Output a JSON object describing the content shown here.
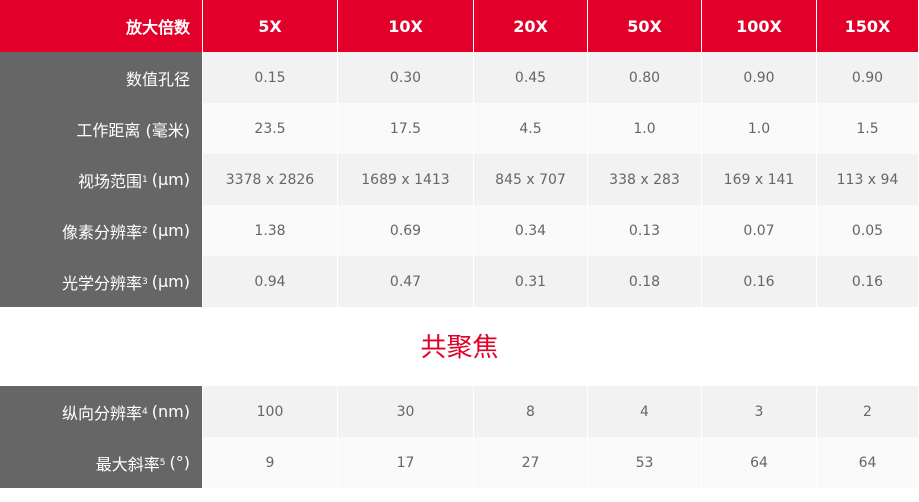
{
  "header": {
    "label": "放大倍数",
    "columns": [
      "5X",
      "10X",
      "20X",
      "50X",
      "100X",
      "150X"
    ]
  },
  "table": {
    "rows": [
      {
        "label": "数值孔径",
        "cells": [
          "0.15",
          "0.30",
          "0.45",
          "0.80",
          "0.90",
          "0.90"
        ]
      },
      {
        "label": "工作距离 (毫米)",
        "cells": [
          "23.5",
          "17.5",
          "4.5",
          "1.0",
          "1.0",
          "1.5"
        ]
      },
      {
        "label": "视场范围",
        "sup": "1",
        "unit": "(μm)",
        "cells": [
          "3378 x 2826",
          "1689 x 1413",
          "845 x 707",
          "338 x 283",
          "169 x 141",
          "113 x 94"
        ]
      },
      {
        "label": "像素分辨率",
        "sup": "2",
        "unit": "(μm)",
        "cells": [
          "1.38",
          "0.69",
          "0.34",
          "0.13",
          "0.07",
          "0.05"
        ]
      },
      {
        "label": "光学分辨率",
        "sup": "3",
        "unit": "(μm)",
        "cells": [
          "0.94",
          "0.47",
          "0.31",
          "0.18",
          "0.16",
          "0.16"
        ]
      }
    ]
  },
  "section": {
    "title": "共聚焦"
  },
  "confocal_table": {
    "rows": [
      {
        "label": "纵向分辨率",
        "sup": "4",
        "unit": "(nm)",
        "cells": [
          "100",
          "30",
          "8",
          "4",
          "3",
          "2"
        ]
      },
      {
        "label": "最大斜率",
        "sup": "5",
        "unit": "(°)",
        "cells": [
          "9",
          "17",
          "27",
          "53",
          "64",
          "64"
        ]
      }
    ]
  }
}
